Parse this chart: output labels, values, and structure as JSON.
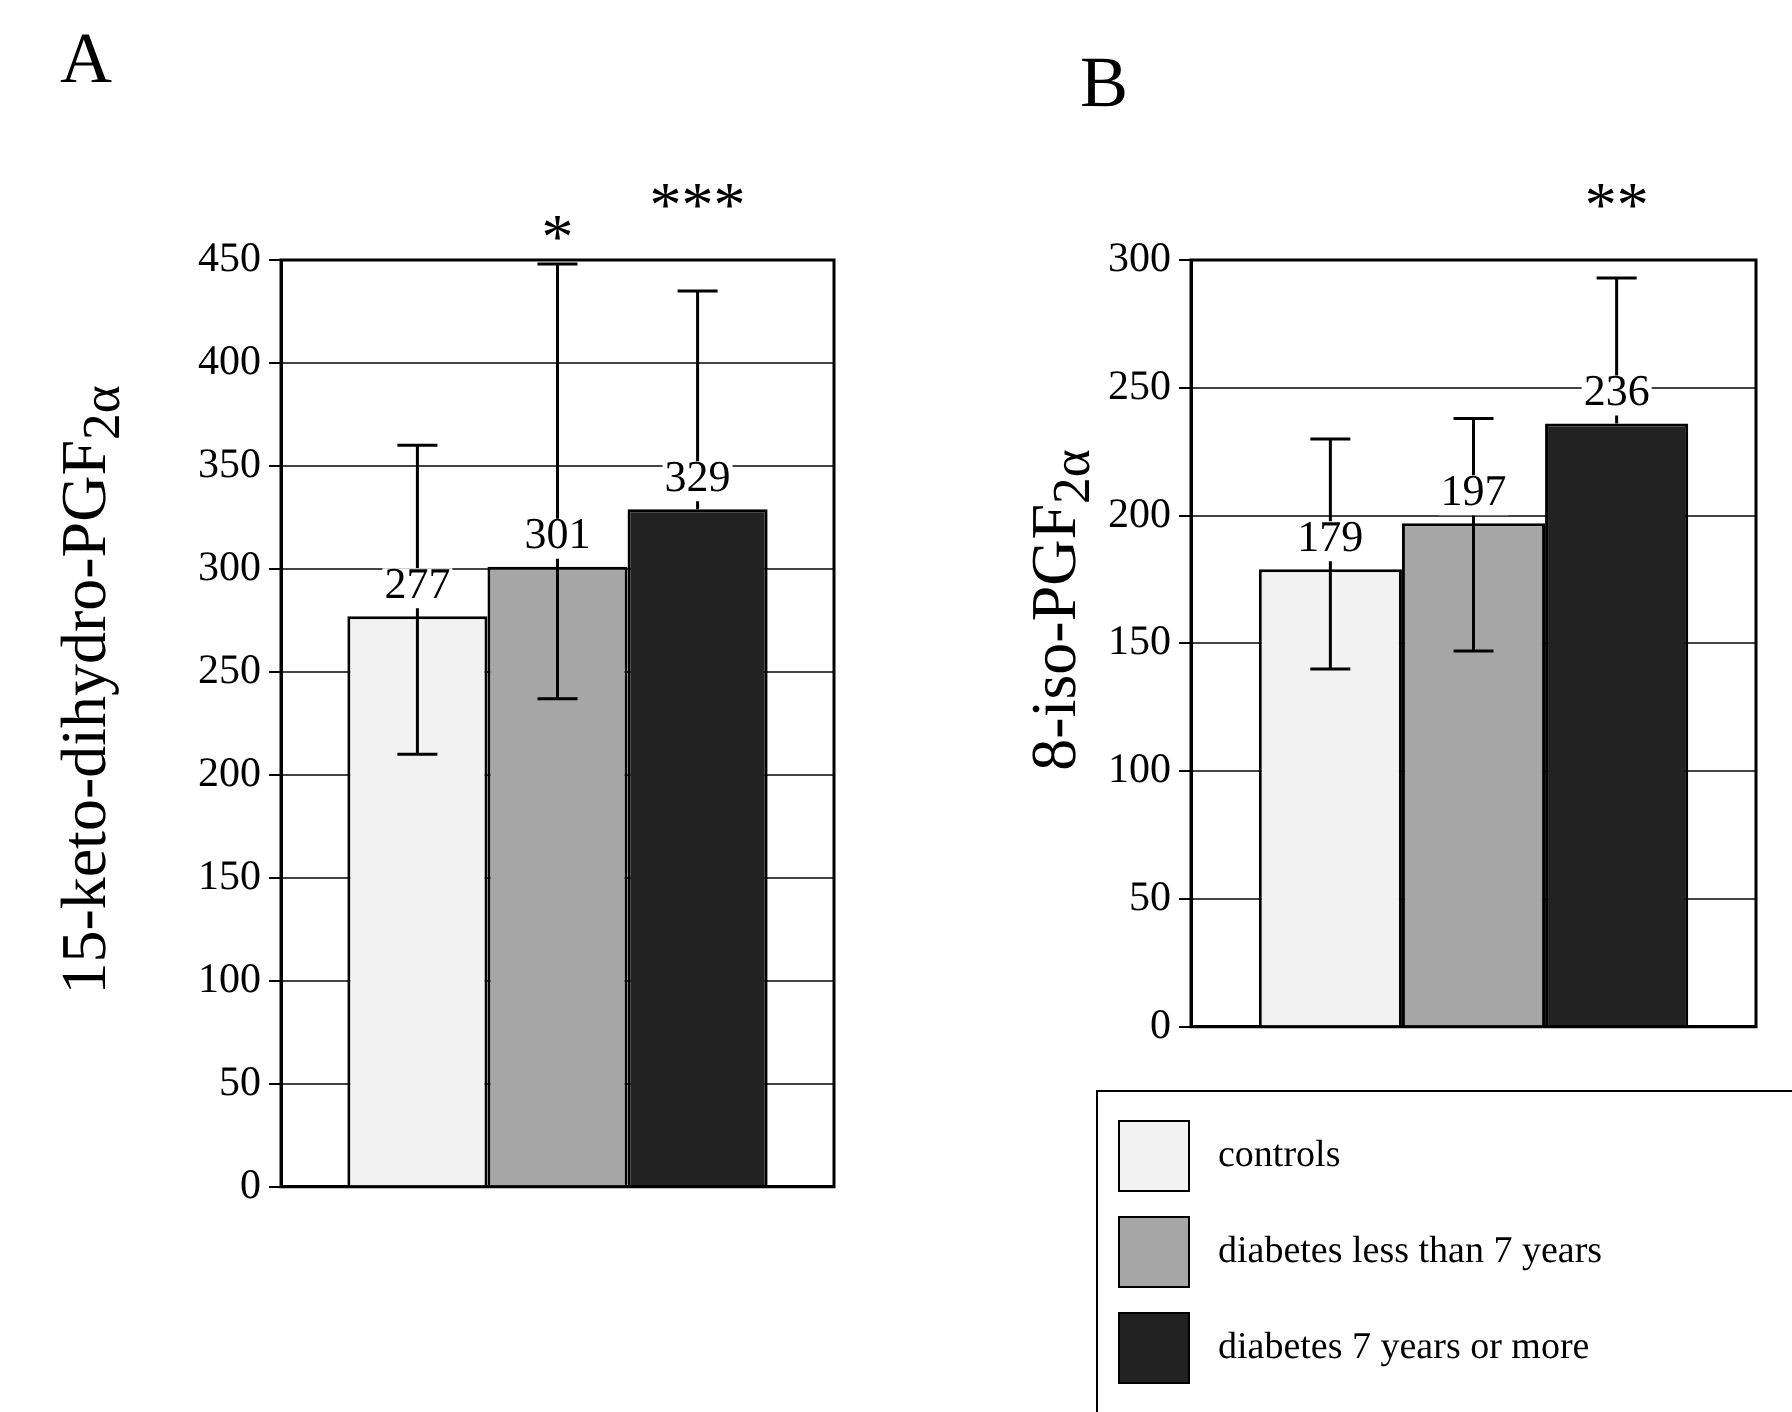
{
  "chart_data": [
    {
      "type": "bar",
      "title": "A",
      "ylabel": "15-keto-dihydro-PGF$_{2α}$",
      "categories": [
        null
      ],
      "series": [
        {
          "color": "#f2f2f2",
          "values": [
            277
          ],
          "errors": [
            [
              210,
              360
            ]
          ]
        },
        {
          "color": "#a6a6a6",
          "values": [
            301
          ],
          "errors": [
            [
              237,
              448
            ]
          ]
        },
        {
          "color": "#222222",
          "values": [
            329
          ],
          "errors": [
            [
              329,
              435
            ]
          ]
        }
      ],
      "ylim": [
        0,
        450
      ],
      "yticks": [
        0,
        50,
        100,
        150,
        200,
        250,
        300,
        350,
        400,
        450
      ],
      "grid": "y",
      "data_labels": true,
      "legend": false,
      "annotations": [
        "*",
        "***"
      ]
    },
    {
      "type": "bar",
      "title": "B",
      "ylabel": "8-iso-PGF$_{2α}$",
      "categories": [
        null
      ],
      "series": [
        {
          "name": "controls",
          "color": "#f2f2f2",
          "values": [
            179
          ],
          "errors": [
            [
              140,
              230
            ]
          ]
        },
        {
          "name": "diabetes less than 7 years",
          "color": "#a6a6a6",
          "values": [
            197
          ],
          "errors": [
            [
              147,
              238
            ]
          ]
        },
        {
          "name": "diabetes 7 years or more",
          "color": "#222222",
          "values": [
            236
          ],
          "errors": [
            [
              236,
              293
            ]
          ]
        }
      ],
      "ylim": [
        0,
        300
      ],
      "yticks": [
        0,
        50,
        100,
        150,
        200,
        250,
        300
      ],
      "grid": "y",
      "data_labels": true,
      "legend": "bottom",
      "annotations": [
        "**"
      ]
    }
  ]
}
